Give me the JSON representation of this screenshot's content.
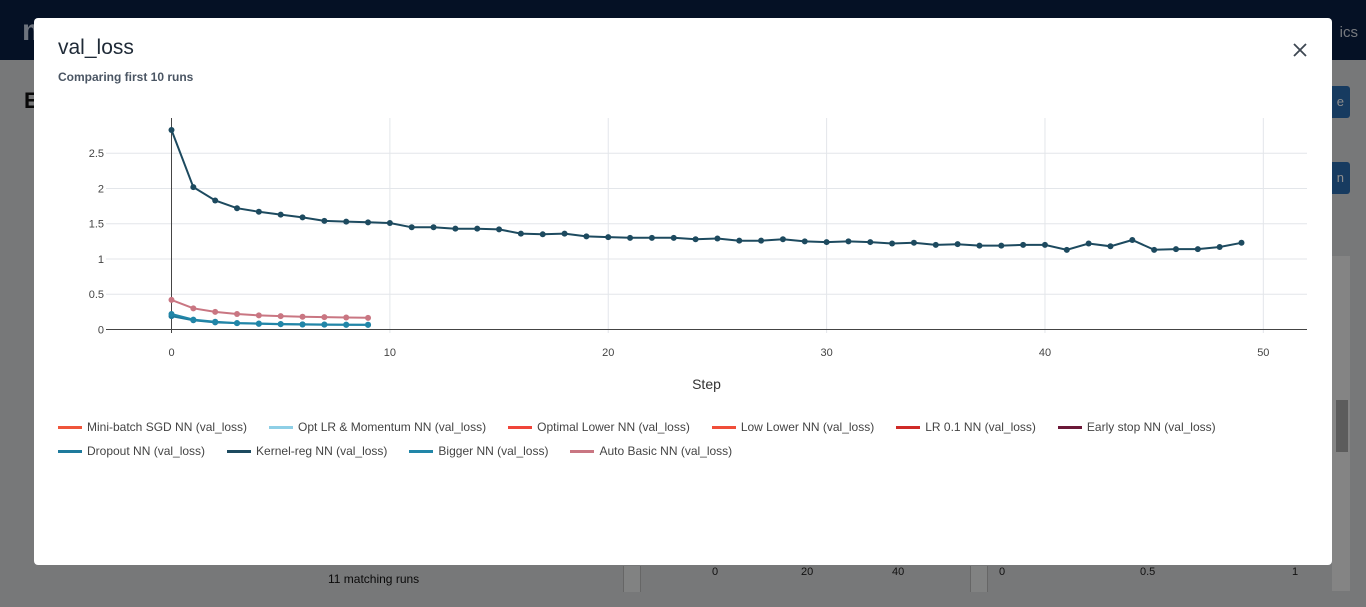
{
  "background": {
    "logo": "ml",
    "nav_fragment": "ics",
    "title_fragment": "E",
    "button_top_fragment": "e",
    "button_mid_fragment": "n",
    "footer_runs": "11 matching runs",
    "axis_a": [
      "0",
      "20",
      "40"
    ],
    "axis_b": [
      "0",
      "0.5",
      "1"
    ]
  },
  "modal": {
    "title": "val_loss",
    "subtitle": "Comparing first 10 runs",
    "close_icon": "close-icon"
  },
  "chart_data": {
    "type": "line",
    "xlabel": "Step",
    "ylabel": "",
    "xlim": [
      -3,
      52
    ],
    "ylim": [
      -0.05,
      3.0
    ],
    "xticks": [
      0,
      10,
      20,
      30,
      40,
      50
    ],
    "yticks": [
      0,
      0.5,
      1,
      1.5,
      2,
      2.5
    ],
    "ytick_labels": [
      "0",
      "0.5",
      "1",
      "1.5",
      "2",
      "2.5"
    ],
    "grid": true,
    "legend_position": "bottom",
    "series": [
      {
        "name": "Mini-batch SGD NN (val_loss)",
        "color": "#ef553b",
        "x": [],
        "y": []
      },
      {
        "name": "Opt LR & Momentum NN (val_loss)",
        "color": "#8ecfe6",
        "x": [],
        "y": []
      },
      {
        "name": "Optimal Lower NN (val_loss)",
        "color": "#f0453a",
        "x": [],
        "y": []
      },
      {
        "name": "Low Lower NN (val_loss)",
        "color": "#f04e3a",
        "x": [],
        "y": []
      },
      {
        "name": "LR 0.1 NN (val_loss)",
        "color": "#cf2a27",
        "x": [],
        "y": []
      },
      {
        "name": "Early stop NN (val_loss)",
        "color": "#6b1838",
        "x": [],
        "y": []
      },
      {
        "name": "Dropout NN (val_loss)",
        "color": "#1e7a9c",
        "x": [
          0,
          1,
          2,
          3,
          4,
          5,
          6,
          7,
          8,
          9
        ],
        "y": [
          0.19,
          0.13,
          0.1,
          0.09,
          0.08,
          0.075,
          0.07,
          0.068,
          0.066,
          0.065
        ]
      },
      {
        "name": "Kernel-reg NN (val_loss)",
        "color": "#1d4a5f",
        "x": [
          0,
          1,
          2,
          3,
          4,
          5,
          6,
          7,
          8,
          9,
          10,
          11,
          12,
          13,
          14,
          15,
          16,
          17,
          18,
          19,
          20,
          21,
          22,
          23,
          24,
          25,
          26,
          27,
          28,
          29,
          30,
          31,
          32,
          33,
          34,
          35,
          36,
          37,
          38,
          39,
          40,
          41,
          42,
          43,
          44,
          45,
          46,
          47,
          48,
          49
        ],
        "y": [
          2.83,
          2.02,
          1.83,
          1.72,
          1.67,
          1.63,
          1.59,
          1.54,
          1.53,
          1.52,
          1.51,
          1.45,
          1.45,
          1.43,
          1.43,
          1.42,
          1.36,
          1.35,
          1.36,
          1.32,
          1.31,
          1.3,
          1.3,
          1.3,
          1.28,
          1.29,
          1.26,
          1.26,
          1.28,
          1.25,
          1.24,
          1.25,
          1.24,
          1.22,
          1.23,
          1.2,
          1.21,
          1.19,
          1.19,
          1.2,
          1.2,
          1.13,
          1.22,
          1.18,
          1.27,
          1.13,
          1.14,
          1.14,
          1.17,
          1.23
        ]
      },
      {
        "name": "Bigger NN (val_loss)",
        "color": "#2186a8",
        "x": [
          0,
          1,
          2,
          3,
          4,
          5,
          6,
          7,
          8,
          9
        ],
        "y": [
          0.22,
          0.14,
          0.11,
          0.09,
          0.085,
          0.078,
          0.073,
          0.07,
          0.068,
          0.067
        ]
      },
      {
        "name": "Auto Basic NN (val_loss)",
        "color": "#c97682",
        "x": [
          0,
          1,
          2,
          3,
          4,
          5,
          6,
          7,
          8,
          9
        ],
        "y": [
          0.42,
          0.3,
          0.25,
          0.22,
          0.2,
          0.19,
          0.18,
          0.175,
          0.17,
          0.165
        ]
      }
    ]
  }
}
